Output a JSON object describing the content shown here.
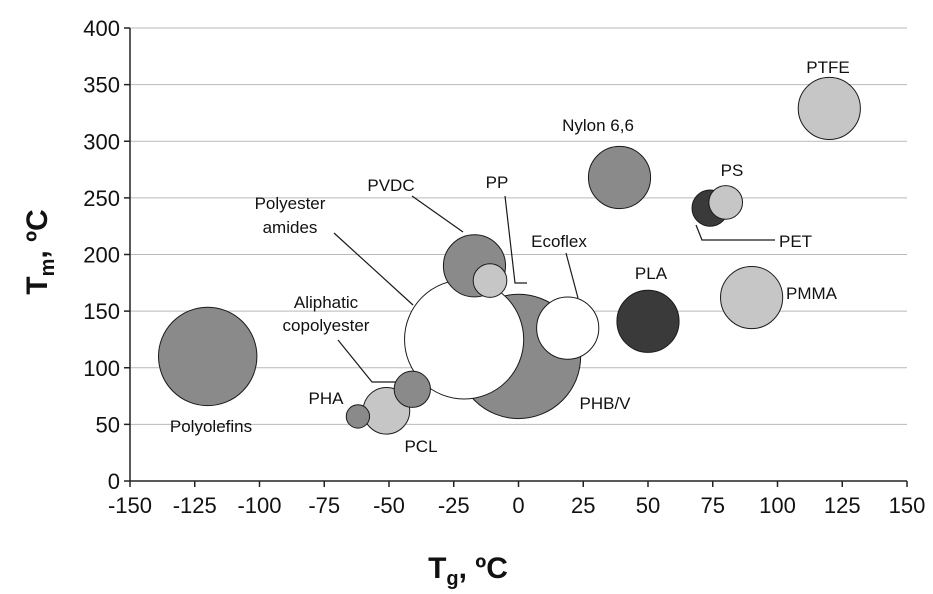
{
  "chart_data": {
    "type": "scatter",
    "title": "",
    "xlabel": {
      "main": "T",
      "sub": "g",
      "unit": ", ºC"
    },
    "ylabel": {
      "main": "T",
      "sub": "m",
      "unit": ", ºC"
    },
    "xlim": [
      -150,
      150
    ],
    "ylim": [
      0,
      400
    ],
    "xticks": [
      "-150",
      "-125",
      "-100",
      "-75",
      "-50",
      "-25",
      "0",
      "25",
      "50",
      "75",
      "100",
      "125",
      "150"
    ],
    "yticks": [
      "0",
      "50",
      "100",
      "150",
      "200",
      "250",
      "300",
      "350",
      "400"
    ],
    "grid": "horizontal",
    "colors": {
      "gray": "#8a8a8a",
      "light": "#c6c6c6",
      "dark": "#3a3a3a",
      "white": "#ffffff"
    },
    "points": [
      {
        "label": "Polyolefins",
        "x": -120,
        "y": 110,
        "size": 19,
        "color": "gray"
      },
      {
        "label": "PHA",
        "x": -62,
        "y": 57,
        "size": 4.5,
        "color": "gray"
      },
      {
        "label": "PCL",
        "x": -51,
        "y": 62,
        "size": 9,
        "color": "light"
      },
      {
        "label": "Aliphatic copolyester",
        "x": -41,
        "y": 81,
        "size": 7,
        "color": "gray"
      },
      {
        "label": "Polyester amides",
        "x": -21,
        "y": 125,
        "size": 23,
        "color": "white"
      },
      {
        "label": "PVDC",
        "x": -17,
        "y": 190,
        "size": 12,
        "color": "gray"
      },
      {
        "label": "PP",
        "x": -11,
        "y": 177,
        "size": 6.5,
        "color": "light"
      },
      {
        "label": "PHB/V",
        "x": 0,
        "y": 110,
        "size": 24,
        "color": "gray"
      },
      {
        "label": "Ecoflex",
        "x": 19,
        "y": 135,
        "size": 12,
        "color": "white"
      },
      {
        "label": "Nylon 6,6",
        "x": 39,
        "y": 268,
        "size": 12,
        "color": "gray"
      },
      {
        "label": "PLA",
        "x": 50,
        "y": 141,
        "size": 12,
        "color": "dark"
      },
      {
        "label": "PET",
        "x": 74,
        "y": 241,
        "size": 7,
        "color": "dark"
      },
      {
        "label": "PS",
        "x": 80,
        "y": 246,
        "size": 6.5,
        "color": "light"
      },
      {
        "label": "PMMA",
        "x": 90,
        "y": 162,
        "size": 12,
        "color": "light"
      },
      {
        "label": "PTFE",
        "x": 120,
        "y": 329,
        "size": 12,
        "color": "light"
      }
    ]
  }
}
